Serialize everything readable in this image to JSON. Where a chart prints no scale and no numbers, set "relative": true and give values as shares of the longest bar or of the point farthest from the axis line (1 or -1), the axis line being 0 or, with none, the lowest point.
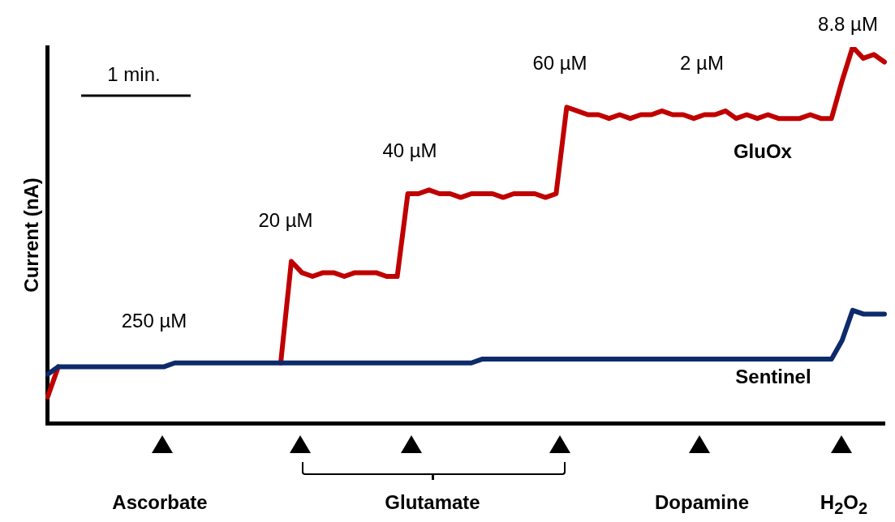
{
  "chart_data": {
    "type": "line",
    "relative": true,
    "ylabel": "Current (nA)",
    "grid": false,
    "legend": false,
    "marker": "none",
    "line_style": "solid",
    "categories": [
      null,
      null,
      null,
      null,
      null,
      null,
      null,
      null,
      null,
      null,
      null,
      null,
      null,
      null,
      null,
      null,
      null,
      null,
      null,
      null,
      null,
      null,
      null,
      null,
      null,
      null,
      null,
      null,
      null,
      null,
      null,
      null,
      null,
      null,
      null,
      null,
      null,
      null,
      null,
      null,
      null,
      null,
      null,
      null,
      null,
      null,
      null,
      null,
      null,
      null,
      null,
      null,
      null,
      null,
      null,
      null,
      null,
      null,
      null,
      null,
      null,
      null,
      null,
      null,
      null,
      null,
      null,
      null,
      null,
      null,
      null,
      null,
      null,
      null,
      null,
      null,
      null,
      null,
      null,
      null
    ],
    "series": [
      {
        "name": "GluOx",
        "color": "#c00000",
        "values": [
          0.07,
          0.15,
          null,
          null,
          null,
          null,
          null,
          null,
          null,
          null,
          null,
          null,
          null,
          null,
          null,
          null,
          null,
          null,
          null,
          null,
          null,
          null,
          0.16,
          0.43,
          0.4,
          0.39,
          0.4,
          0.4,
          0.39,
          0.4,
          0.4,
          0.4,
          0.39,
          0.39,
          0.61,
          0.61,
          0.62,
          0.61,
          0.61,
          0.6,
          0.61,
          0.61,
          0.61,
          0.6,
          0.61,
          0.61,
          0.61,
          0.6,
          0.61,
          0.84,
          0.83,
          0.82,
          0.82,
          0.81,
          0.82,
          0.81,
          0.82,
          0.82,
          0.83,
          0.82,
          0.82,
          0.81,
          0.82,
          0.82,
          0.83,
          0.81,
          0.82,
          0.81,
          0.82,
          0.81,
          0.81,
          0.81,
          0.82,
          0.81,
          0.81,
          0.91,
          1,
          0.97,
          0.98,
          0.96
        ]
      },
      {
        "name": "Sentinel",
        "color": "#0d2a6b",
        "values": [
          0.13,
          0.15,
          0.15,
          0.15,
          0.15,
          0.15,
          0.15,
          0.15,
          0.15,
          0.15,
          0.15,
          0.15,
          0.16,
          0.16,
          0.16,
          0.16,
          0.16,
          0.16,
          0.16,
          0.16,
          0.16,
          0.16,
          0.16,
          0.16,
          0.16,
          0.16,
          0.16,
          0.16,
          0.16,
          0.16,
          0.16,
          0.16,
          0.16,
          0.16,
          0.16,
          0.16,
          0.16,
          0.16,
          0.16,
          0.16,
          0.16,
          0.17,
          0.17,
          0.17,
          0.17,
          0.17,
          0.17,
          0.17,
          0.17,
          0.17,
          0.17,
          0.17,
          0.17,
          0.17,
          0.17,
          0.17,
          0.17,
          0.17,
          0.17,
          0.17,
          0.17,
          0.17,
          0.17,
          0.17,
          0.17,
          0.17,
          0.17,
          0.17,
          0.17,
          0.17,
          0.17,
          0.17,
          0.17,
          0.17,
          0.17,
          0.22,
          0.3,
          0.29,
          0.29,
          0.29
        ]
      }
    ],
    "annotations": [
      "1 min.",
      "250 µM",
      "20 µM",
      "40 µM",
      "60 µM",
      "2 µM",
      "8.8 µM",
      "Ascorbate",
      "Glutamate",
      "Dopamine",
      "H$_{2}$O$_{2}$"
    ]
  }
}
